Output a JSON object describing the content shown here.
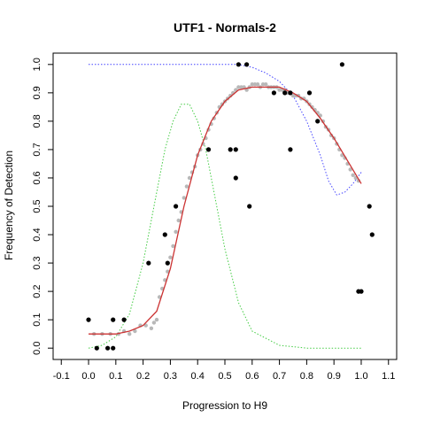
{
  "chart_data": {
    "type": "scatter",
    "title": "UTF1 - Normals-2",
    "xlabel": "Progression to H9",
    "ylabel": "Frequency of Detection",
    "xlim": [
      -0.13,
      1.13
    ],
    "ylim": [
      -0.04,
      1.04
    ],
    "xticks": [
      "-0.1",
      "0.0",
      "0.1",
      "0.2",
      "0.3",
      "0.4",
      "0.5",
      "0.6",
      "0.7",
      "0.8",
      "0.9",
      "1.0",
      "1.1"
    ],
    "xtick_values": [
      -0.1,
      0.0,
      0.1,
      0.2,
      0.3,
      0.4,
      0.5,
      0.6,
      0.7,
      0.8,
      0.9,
      1.0,
      1.1
    ],
    "yticks": [
      "0.0",
      "0.1",
      "0.2",
      "0.3",
      "0.4",
      "0.5",
      "0.6",
      "0.7",
      "0.8",
      "0.9",
      "1.0"
    ],
    "ytick_values": [
      0.0,
      0.1,
      0.2,
      0.3,
      0.4,
      0.5,
      0.6,
      0.7,
      0.8,
      0.9,
      1.0
    ],
    "grid": false,
    "series": [
      {
        "kind": "points",
        "color": "#000000",
        "points": [
          [
            0.0,
            0.1
          ],
          [
            0.03,
            0.0
          ],
          [
            0.07,
            0.0
          ],
          [
            0.09,
            0.0
          ],
          [
            0.09,
            0.1
          ],
          [
            0.13,
            0.1
          ],
          [
            0.22,
            0.3
          ],
          [
            0.28,
            0.4
          ],
          [
            0.29,
            0.3
          ],
          [
            0.32,
            0.5
          ],
          [
            0.44,
            0.7
          ],
          [
            0.52,
            0.7
          ],
          [
            0.54,
            0.7
          ],
          [
            0.54,
            0.6
          ],
          [
            0.59,
            0.5
          ],
          [
            0.55,
            1.0
          ],
          [
            0.58,
            1.0
          ],
          [
            0.68,
            0.9
          ],
          [
            0.72,
            0.9
          ],
          [
            0.74,
            0.9
          ],
          [
            0.74,
            0.7
          ],
          [
            0.81,
            0.9
          ],
          [
            0.84,
            0.8
          ],
          [
            0.93,
            1.0
          ],
          [
            0.99,
            0.2
          ],
          [
            1.0,
            0.2
          ],
          [
            1.03,
            0.5
          ],
          [
            1.04,
            0.4
          ]
        ]
      },
      {
        "kind": "points",
        "color": "#b8b8b8",
        "points": [
          [
            0.02,
            0.05
          ],
          [
            0.05,
            0.05
          ],
          [
            0.08,
            0.05
          ],
          [
            0.11,
            0.05
          ],
          [
            0.13,
            0.06
          ],
          [
            0.15,
            0.05
          ],
          [
            0.17,
            0.06
          ],
          [
            0.19,
            0.08
          ],
          [
            0.21,
            0.08
          ],
          [
            0.23,
            0.07
          ],
          [
            0.24,
            0.09
          ],
          [
            0.25,
            0.1
          ],
          [
            0.26,
            0.18
          ],
          [
            0.27,
            0.21
          ],
          [
            0.28,
            0.24
          ],
          [
            0.29,
            0.27
          ],
          [
            0.3,
            0.32
          ],
          [
            0.31,
            0.36
          ],
          [
            0.32,
            0.41
          ],
          [
            0.33,
            0.45
          ],
          [
            0.34,
            0.48
          ],
          [
            0.35,
            0.53
          ],
          [
            0.36,
            0.57
          ],
          [
            0.37,
            0.6
          ],
          [
            0.38,
            0.62
          ],
          [
            0.39,
            0.64
          ],
          [
            0.4,
            0.68
          ],
          [
            0.41,
            0.7
          ],
          [
            0.42,
            0.72
          ],
          [
            0.43,
            0.74
          ],
          [
            0.44,
            0.77
          ],
          [
            0.45,
            0.79
          ],
          [
            0.46,
            0.81
          ],
          [
            0.47,
            0.83
          ],
          [
            0.48,
            0.85
          ],
          [
            0.49,
            0.86
          ],
          [
            0.5,
            0.87
          ],
          [
            0.51,
            0.88
          ],
          [
            0.52,
            0.89
          ],
          [
            0.53,
            0.9
          ],
          [
            0.54,
            0.91
          ],
          [
            0.55,
            0.92
          ],
          [
            0.56,
            0.92
          ],
          [
            0.57,
            0.92
          ],
          [
            0.58,
            0.91
          ],
          [
            0.59,
            0.92
          ],
          [
            0.6,
            0.93
          ],
          [
            0.61,
            0.93
          ],
          [
            0.62,
            0.93
          ],
          [
            0.63,
            0.92
          ],
          [
            0.64,
            0.93
          ],
          [
            0.65,
            0.93
          ],
          [
            0.66,
            0.92
          ],
          [
            0.67,
            0.92
          ],
          [
            0.68,
            0.92
          ],
          [
            0.69,
            0.92
          ],
          [
            0.7,
            0.91
          ],
          [
            0.71,
            0.91
          ],
          [
            0.72,
            0.91
          ],
          [
            0.73,
            0.9
          ],
          [
            0.74,
            0.9
          ],
          [
            0.75,
            0.89
          ],
          [
            0.76,
            0.89
          ],
          [
            0.77,
            0.89
          ],
          [
            0.78,
            0.88
          ],
          [
            0.79,
            0.88
          ],
          [
            0.8,
            0.87
          ],
          [
            0.81,
            0.86
          ],
          [
            0.82,
            0.85
          ],
          [
            0.83,
            0.84
          ],
          [
            0.84,
            0.83
          ],
          [
            0.85,
            0.82
          ],
          [
            0.86,
            0.8
          ],
          [
            0.87,
            0.78
          ],
          [
            0.88,
            0.77
          ],
          [
            0.89,
            0.75
          ],
          [
            0.9,
            0.74
          ],
          [
            0.91,
            0.72
          ],
          [
            0.92,
            0.7
          ],
          [
            0.93,
            0.68
          ],
          [
            0.94,
            0.67
          ],
          [
            0.95,
            0.65
          ],
          [
            0.96,
            0.63
          ],
          [
            0.97,
            0.61
          ],
          [
            0.98,
            0.6
          ],
          [
            0.99,
            0.59
          ]
        ]
      },
      {
        "kind": "line",
        "color": "#cc3333",
        "style": "solid",
        "x": [
          0.0,
          0.05,
          0.1,
          0.15,
          0.2,
          0.25,
          0.3,
          0.35,
          0.4,
          0.45,
          0.5,
          0.55,
          0.6,
          0.65,
          0.7,
          0.75,
          0.8,
          0.85,
          0.9,
          0.95,
          1.0
        ],
        "y": [
          0.05,
          0.05,
          0.05,
          0.06,
          0.08,
          0.13,
          0.28,
          0.5,
          0.68,
          0.8,
          0.87,
          0.91,
          0.92,
          0.92,
          0.92,
          0.9,
          0.87,
          0.81,
          0.74,
          0.66,
          0.58
        ]
      },
      {
        "kind": "line",
        "color": "#44cc44",
        "style": "dotted",
        "x": [
          0.0,
          0.05,
          0.1,
          0.15,
          0.2,
          0.25,
          0.28,
          0.31,
          0.34,
          0.37,
          0.4,
          0.43,
          0.46,
          0.5,
          0.55,
          0.6,
          0.7,
          0.8,
          0.9,
          1.0
        ],
        "y": [
          0.0,
          0.01,
          0.04,
          0.12,
          0.3,
          0.55,
          0.7,
          0.8,
          0.86,
          0.86,
          0.8,
          0.7,
          0.55,
          0.35,
          0.16,
          0.06,
          0.01,
          0.0,
          0.0,
          0.0
        ]
      },
      {
        "kind": "line",
        "color": "#4444ff",
        "style": "dotted",
        "x": [
          0.0,
          0.1,
          0.2,
          0.3,
          0.4,
          0.5,
          0.55,
          0.6,
          0.65,
          0.7,
          0.75,
          0.8,
          0.85,
          0.88,
          0.91,
          0.94,
          0.97,
          1.0
        ],
        "y": [
          1.0,
          1.0,
          1.0,
          1.0,
          1.0,
          1.0,
          1.0,
          0.99,
          0.97,
          0.94,
          0.89,
          0.8,
          0.68,
          0.59,
          0.54,
          0.55,
          0.58,
          0.62
        ]
      }
    ]
  }
}
